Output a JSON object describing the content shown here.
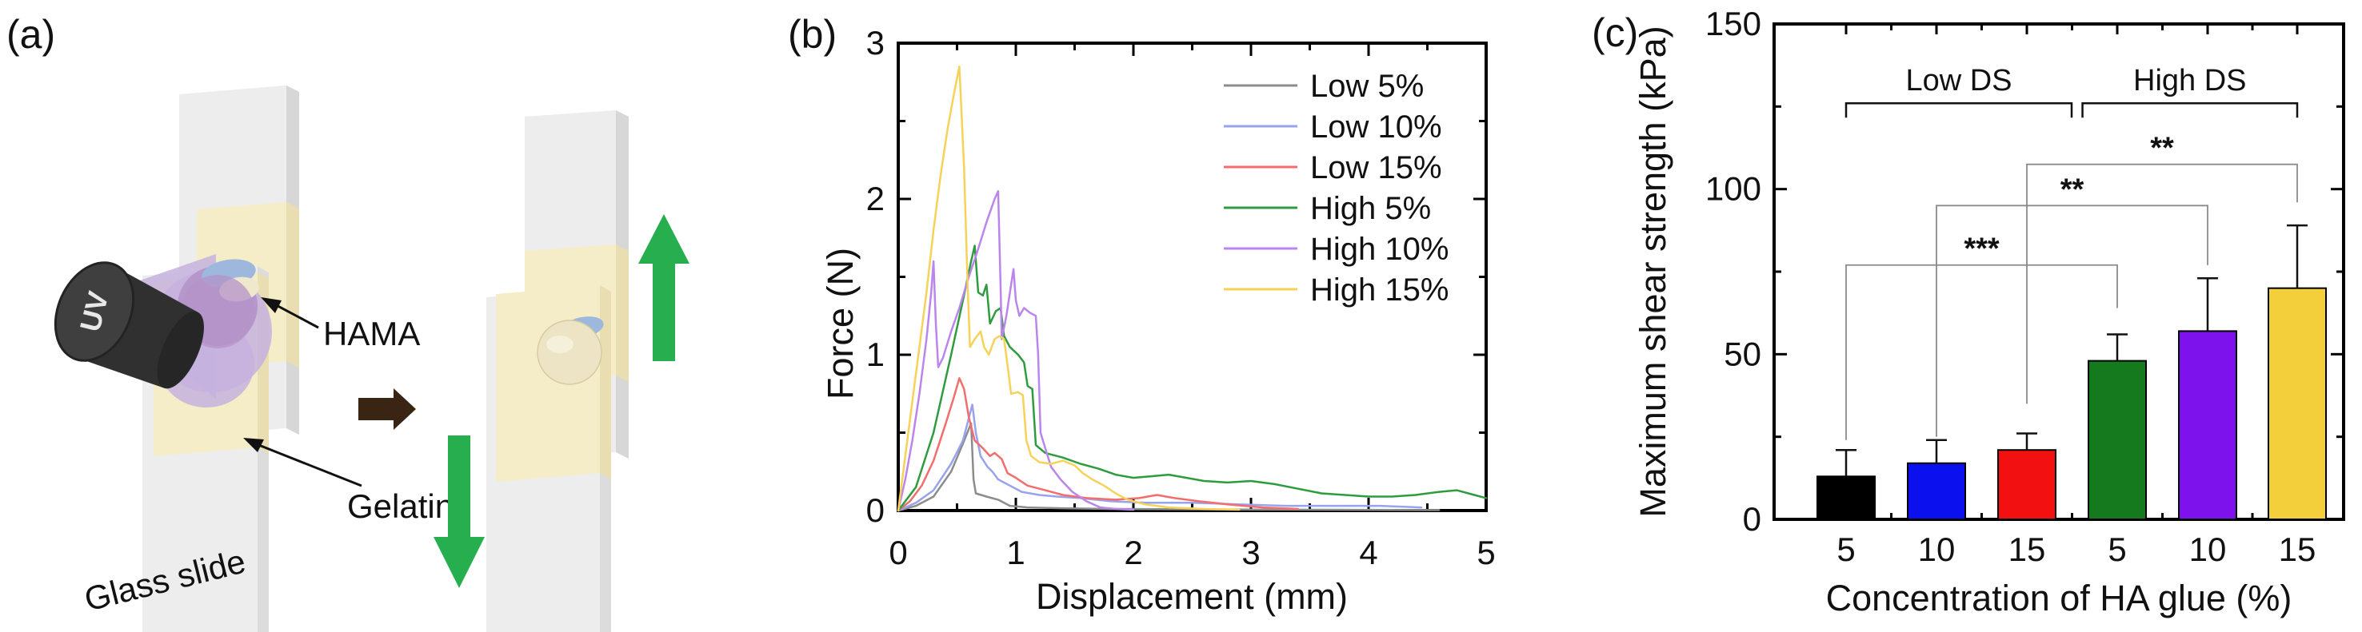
{
  "figure": {
    "background": "#ffffff",
    "panel_a_tag": "(a)",
    "panel_b_tag": "(b)",
    "panel_c_tag": "(c)"
  },
  "diagram": {
    "labels": {
      "hama": "HAMA",
      "gelatin": "Gelatin",
      "glass_slide": "Glass slide",
      "lamp": "UV"
    },
    "colors": {
      "slide_face": "#ededed",
      "slide_side": "#d7d7d7",
      "slide_top": "#f8f8f8",
      "gelatin_face": "#f4edc7",
      "gelatin_side": "#e8deb2",
      "uv_cone": "#c6b1de",
      "uv_spot": "#b493c9",
      "hama_blue": "#9db8dc",
      "droplet_cream": "#ece4c4",
      "lamp_body": "#303030",
      "lamp_face": "#3f3f3f",
      "arrow_green": "#27ae4f",
      "arrow_brown": "#3a2413",
      "ink": "#111111"
    }
  },
  "chart_data": [
    {
      "id": "force_displacement",
      "type": "line",
      "title": "",
      "xlabel": "Displacement (mm)",
      "ylabel": "Force (N)",
      "xlim": [
        0,
        5
      ],
      "ylim": [
        0,
        3
      ],
      "xticks": [
        "0",
        "1",
        "2",
        "3",
        "4",
        "5"
      ],
      "yticks": [
        "0",
        "1",
        "2",
        "3"
      ],
      "x_minor": [
        0.5,
        1.5,
        2.5,
        3.5,
        4.5
      ],
      "y_minor": [
        0.5,
        1.5,
        2.5
      ],
      "grid": false,
      "legend_position": "top-right",
      "series": [
        {
          "name": "Low 5%",
          "color": "#8c8c8c",
          "points": [
            [
              0,
              0
            ],
            [
              0.15,
              0.03
            ],
            [
              0.3,
              0.09
            ],
            [
              0.45,
              0.25
            ],
            [
              0.55,
              0.43
            ],
            [
              0.62,
              0.56
            ],
            [
              0.64,
              0.2
            ],
            [
              0.66,
              0.11
            ],
            [
              0.75,
              0.09
            ],
            [
              0.85,
              0.07
            ],
            [
              0.95,
              0.03
            ],
            [
              1.1,
              0.02
            ],
            [
              1.4,
              0.015
            ],
            [
              1.8,
              0.01
            ],
            [
              2.4,
              0.008
            ],
            [
              3.0,
              0.006
            ],
            [
              3.6,
              0.005
            ],
            [
              4.2,
              0.004
            ],
            [
              4.6,
              0.003
            ]
          ]
        },
        {
          "name": "Low 10%",
          "color": "#98a3ee",
          "points": [
            [
              0,
              0
            ],
            [
              0.15,
              0.05
            ],
            [
              0.3,
              0.13
            ],
            [
              0.45,
              0.3
            ],
            [
              0.55,
              0.45
            ],
            [
              0.63,
              0.68
            ],
            [
              0.66,
              0.5
            ],
            [
              0.7,
              0.35
            ],
            [
              0.76,
              0.28
            ],
            [
              0.8,
              0.25
            ],
            [
              0.85,
              0.2
            ],
            [
              0.95,
              0.16
            ],
            [
              1.05,
              0.12
            ],
            [
              1.2,
              0.1
            ],
            [
              1.35,
              0.09
            ],
            [
              1.55,
              0.08
            ],
            [
              1.8,
              0.06
            ],
            [
              2.1,
              0.05
            ],
            [
              2.5,
              0.05
            ],
            [
              2.9,
              0.04
            ],
            [
              3.3,
              0.03
            ],
            [
              3.7,
              0.03
            ],
            [
              4.1,
              0.03
            ],
            [
              4.45,
              0.02
            ]
          ]
        },
        {
          "name": "Low 15%",
          "color": "#f36d6d",
          "points": [
            [
              0,
              0
            ],
            [
              0.1,
              0.06
            ],
            [
              0.2,
              0.16
            ],
            [
              0.3,
              0.32
            ],
            [
              0.4,
              0.55
            ],
            [
              0.47,
              0.72
            ],
            [
              0.52,
              0.85
            ],
            [
              0.56,
              0.78
            ],
            [
              0.6,
              0.6
            ],
            [
              0.65,
              0.45
            ],
            [
              0.72,
              0.4
            ],
            [
              0.78,
              0.35
            ],
            [
              0.82,
              0.37
            ],
            [
              0.88,
              0.33
            ],
            [
              0.93,
              0.24
            ],
            [
              1.0,
              0.21
            ],
            [
              1.1,
              0.16
            ],
            [
              1.25,
              0.13
            ],
            [
              1.4,
              0.1
            ],
            [
              1.6,
              0.08
            ],
            [
              1.85,
              0.07
            ],
            [
              2.05,
              0.08
            ],
            [
              2.2,
              0.1
            ],
            [
              2.35,
              0.08
            ],
            [
              2.55,
              0.06
            ],
            [
              2.8,
              0.04
            ],
            [
              3.1,
              0.02
            ],
            [
              3.4,
              0.01
            ]
          ]
        },
        {
          "name": "High 5%",
          "color": "#2f9b3f",
          "points": [
            [
              0,
              0
            ],
            [
              0.15,
              0.15
            ],
            [
              0.3,
              0.5
            ],
            [
              0.45,
              1.0
            ],
            [
              0.55,
              1.35
            ],
            [
              0.62,
              1.6
            ],
            [
              0.65,
              1.7
            ],
            [
              0.68,
              1.4
            ],
            [
              0.72,
              1.38
            ],
            [
              0.75,
              1.45
            ],
            [
              0.78,
              1.2
            ],
            [
              0.83,
              1.28
            ],
            [
              0.87,
              1.3
            ],
            [
              0.9,
              1.12
            ],
            [
              0.95,
              1.05
            ],
            [
              1.02,
              1.0
            ],
            [
              1.07,
              0.95
            ],
            [
              1.1,
              0.8
            ],
            [
              1.14,
              0.78
            ],
            [
              1.17,
              0.42
            ],
            [
              1.25,
              0.37
            ],
            [
              1.4,
              0.34
            ],
            [
              1.55,
              0.3
            ],
            [
              1.7,
              0.27
            ],
            [
              1.85,
              0.23
            ],
            [
              2.0,
              0.21
            ],
            [
              2.15,
              0.22
            ],
            [
              2.3,
              0.23
            ],
            [
              2.45,
              0.21
            ],
            [
              2.6,
              0.19
            ],
            [
              2.8,
              0.18
            ],
            [
              3.0,
              0.19
            ],
            [
              3.2,
              0.17
            ],
            [
              3.4,
              0.14
            ],
            [
              3.6,
              0.11
            ],
            [
              3.8,
              0.1
            ],
            [
              4.0,
              0.09
            ],
            [
              4.2,
              0.09
            ],
            [
              4.4,
              0.1
            ],
            [
              4.6,
              0.12
            ],
            [
              4.75,
              0.13
            ],
            [
              4.9,
              0.1
            ],
            [
              5.0,
              0.08
            ]
          ]
        },
        {
          "name": "High 10%",
          "color": "#bc85ec",
          "points": [
            [
              0,
              0
            ],
            [
              0.06,
              0.2
            ],
            [
              0.12,
              0.45
            ],
            [
              0.18,
              0.75
            ],
            [
              0.24,
              1.1
            ],
            [
              0.28,
              1.4
            ],
            [
              0.3,
              1.6
            ],
            [
              0.32,
              1.2
            ],
            [
              0.34,
              0.92
            ],
            [
              0.38,
              0.98
            ],
            [
              0.45,
              1.15
            ],
            [
              0.52,
              1.3
            ],
            [
              0.6,
              1.5
            ],
            [
              0.68,
              1.68
            ],
            [
              0.75,
              1.85
            ],
            [
              0.82,
              2.0
            ],
            [
              0.85,
              2.05
            ],
            [
              0.87,
              1.45
            ],
            [
              0.88,
              1.1
            ],
            [
              0.92,
              1.25
            ],
            [
              0.96,
              1.45
            ],
            [
              0.98,
              1.55
            ],
            [
              1.0,
              1.35
            ],
            [
              1.03,
              1.25
            ],
            [
              1.07,
              1.3
            ],
            [
              1.12,
              1.27
            ],
            [
              1.17,
              1.25
            ],
            [
              1.19,
              1.0
            ],
            [
              1.21,
              0.5
            ],
            [
              1.25,
              0.4
            ],
            [
              1.3,
              0.28
            ],
            [
              1.38,
              0.2
            ],
            [
              1.48,
              0.12
            ],
            [
              1.6,
              0.06
            ],
            [
              1.72,
              0.02
            ],
            [
              1.85,
              0.01
            ],
            [
              2.0,
              0.005
            ]
          ]
        },
        {
          "name": "High 15%",
          "color": "#f7d259",
          "points": [
            [
              0,
              0
            ],
            [
              0.06,
              0.35
            ],
            [
              0.12,
              0.7
            ],
            [
              0.18,
              1.05
            ],
            [
              0.24,
              1.4
            ],
            [
              0.3,
              1.8
            ],
            [
              0.36,
              2.15
            ],
            [
              0.42,
              2.45
            ],
            [
              0.48,
              2.7
            ],
            [
              0.52,
              2.85
            ],
            [
              0.56,
              2.2
            ],
            [
              0.59,
              1.45
            ],
            [
              0.61,
              1.05
            ],
            [
              0.65,
              1.1
            ],
            [
              0.7,
              1.15
            ],
            [
              0.73,
              1.05
            ],
            [
              0.77,
              1.0
            ],
            [
              0.82,
              1.1
            ],
            [
              0.86,
              1.12
            ],
            [
              0.9,
              1.1
            ],
            [
              0.93,
              0.93
            ],
            [
              0.96,
              0.75
            ],
            [
              1.02,
              0.76
            ],
            [
              1.06,
              0.74
            ],
            [
              1.09,
              0.45
            ],
            [
              1.13,
              0.35
            ],
            [
              1.2,
              0.31
            ],
            [
              1.3,
              0.3
            ],
            [
              1.4,
              0.32
            ],
            [
              1.5,
              0.29
            ],
            [
              1.57,
              0.24
            ],
            [
              1.65,
              0.2
            ],
            [
              1.75,
              0.16
            ],
            [
              1.85,
              0.11
            ],
            [
              1.95,
              0.07
            ],
            [
              2.1,
              0.04
            ],
            [
              2.3,
              0.02
            ],
            [
              2.6,
              0.01
            ],
            [
              2.9,
              0.005
            ]
          ]
        }
      ]
    },
    {
      "id": "max_shear_strength",
      "type": "bar",
      "title": "",
      "xlabel": "Concentration of HA glue (%)",
      "ylabel": "Maximum shear strength (kPa)",
      "ylim": [
        0,
        150
      ],
      "yticks": [
        "0",
        "50",
        "100",
        "150"
      ],
      "y_minor": [
        25,
        75,
        125
      ],
      "categories": [
        "5",
        "10",
        "15",
        "5",
        "10",
        "15"
      ],
      "values": [
        13,
        17,
        21,
        48,
        57,
        70
      ],
      "errors": [
        8,
        7,
        5,
        8,
        16,
        19
      ],
      "bar_colors": [
        "#000000",
        "#0b10ee",
        "#f21010",
        "#157a1e",
        "#7d12ed",
        "#f4cf3c"
      ],
      "group_brackets": [
        {
          "label": "Low DS",
          "from_frac": 0,
          "to_frac": 2.5,
          "y_kpa": 126
        },
        {
          "label": "High DS",
          "from_frac": 2.62,
          "to_frac": 5,
          "y_kpa": 126
        }
      ],
      "significance": [
        {
          "stars": "***",
          "from_bar": 0,
          "to_bar": 3,
          "y_kpa": 77,
          "drop_from_kpa": 24,
          "drop_to_kpa": 64
        },
        {
          "stars": "**",
          "from_bar": 1,
          "to_bar": 4,
          "y_kpa": 95,
          "drop_from_kpa": 25,
          "drop_to_kpa": 77
        },
        {
          "stars": "**",
          "from_bar": 2,
          "to_bar": 5,
          "y_kpa": 107.5,
          "drop_from_kpa": 35,
          "drop_to_kpa": 96
        }
      ]
    }
  ]
}
